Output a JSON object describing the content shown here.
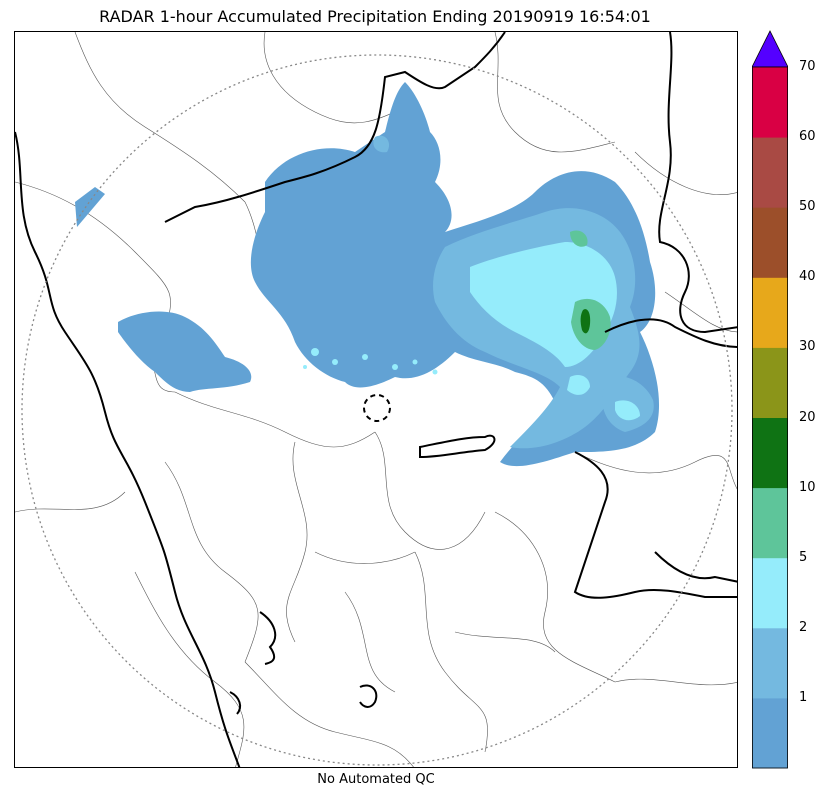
{
  "title": "RADAR 1-hour Accumulated Precipitation Ending 20190919 16:54:01",
  "footer": "No Automated QC",
  "colorbar": {
    "levels": [
      {
        "color": "#62a2d4"
      },
      {
        "color": "#74b9e0",
        "label": "1"
      },
      {
        "color": "#95ecfb",
        "label": "2"
      },
      {
        "color": "#5ec59a",
        "label": "5"
      },
      {
        "color": "#0f7314",
        "label": "10"
      },
      {
        "color": "#8b9519",
        "label": "20"
      },
      {
        "color": "#e7a81b",
        "label": "30"
      },
      {
        "color": "#9c4f2a",
        "label": "40"
      },
      {
        "color": "#a94a44",
        "label": "50"
      },
      {
        "color": "#d90044",
        "label": "60"
      }
    ],
    "top_label": "70",
    "extend_color": "#5400ff"
  }
}
